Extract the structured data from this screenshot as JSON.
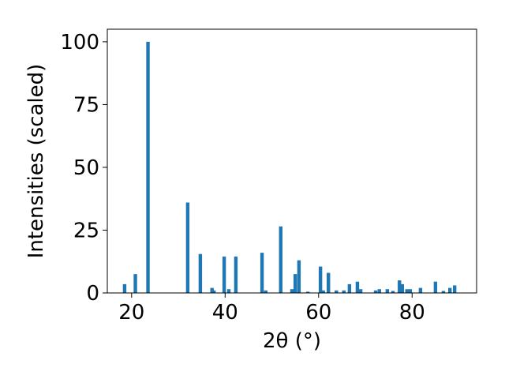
{
  "chart_data": {
    "type": "bar",
    "xlabel": "2θ (°)",
    "ylabel": "Intensities (scaled)",
    "x": [
      18.5,
      20.8,
      23.5,
      32.0,
      34.7,
      37.2,
      37.6,
      39.8,
      40.8,
      42.3,
      47.9,
      48.7,
      51.9,
      54.3,
      55.0,
      55.8,
      57.7,
      60.4,
      61.0,
      62.1,
      63.8,
      65.4,
      66.6,
      68.3,
      69.0,
      72.2,
      73.0,
      74.7,
      75.9,
      77.3,
      77.9,
      78.9,
      79.6,
      81.8,
      85.0,
      86.7,
      88.1,
      89.1
    ],
    "values": [
      3.5,
      7.5,
      100,
      36,
      15.5,
      2,
      1,
      14.5,
      1.5,
      14.5,
      16,
      1,
      26.5,
      1.5,
      7.5,
      13,
      0.5,
      10.5,
      1,
      8,
      1,
      1,
      3.5,
      4.5,
      1.5,
      1,
      1.5,
      1.5,
      0.8,
      5,
      3.5,
      1.5,
      1.5,
      2,
      4.5,
      0.8,
      2,
      3
    ],
    "color": "#1f77b4",
    "xlim": [
      14.8,
      93.8
    ],
    "xticks": [
      20,
      40,
      60,
      80
    ],
    "ylim": [
      0,
      105
    ],
    "yticks": [
      0,
      25,
      50,
      75,
      100
    ]
  }
}
